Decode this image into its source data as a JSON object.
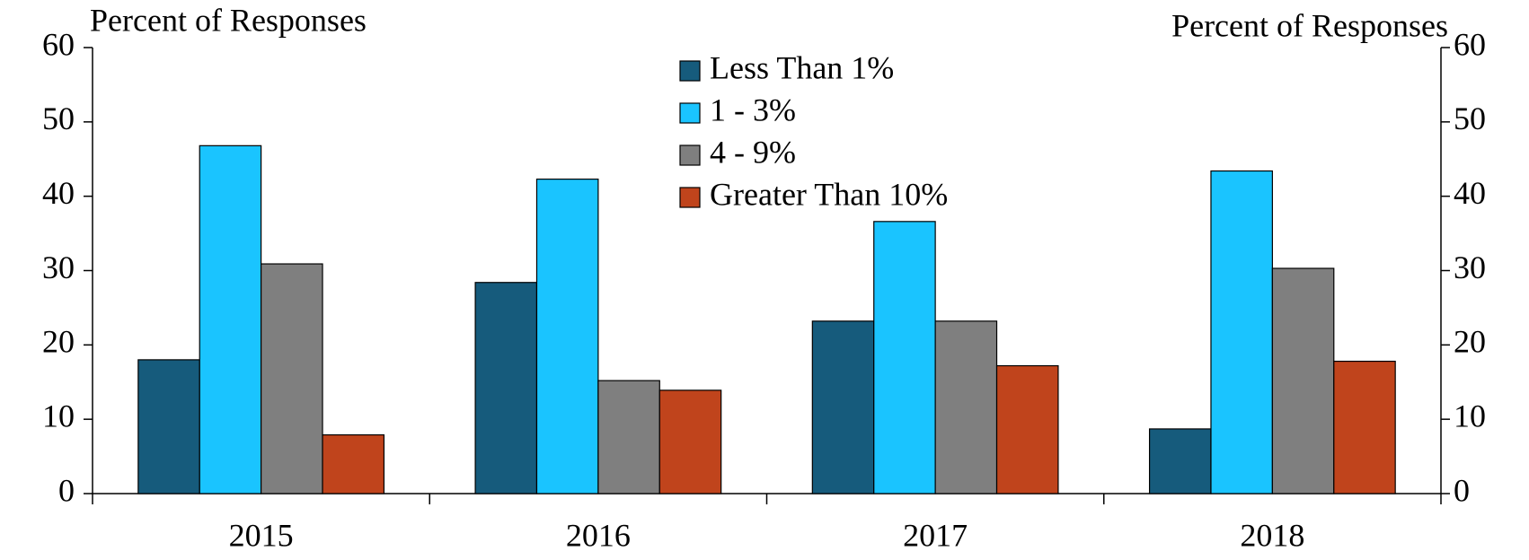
{
  "chart_data": {
    "type": "bar",
    "y_label_left": "Percent of Responses",
    "y_label_right": "Percent of Responses",
    "categories": [
      "2015",
      "2016",
      "2017",
      "2018"
    ],
    "series": [
      {
        "name": "Less Than 1%",
        "color": "#165b7c",
        "values": [
          18.0,
          28.4,
          23.2,
          8.7
        ]
      },
      {
        "name": "1 - 3%",
        "color": "#1ac4ff",
        "values": [
          46.8,
          42.3,
          36.6,
          43.4
        ]
      },
      {
        "name": "4 - 9%",
        "color": "#7f7f7f",
        "values": [
          30.9,
          15.2,
          23.2,
          30.3
        ]
      },
      {
        "name": "Greater Than 10%",
        "color": "#c0441c",
        "values": [
          7.9,
          13.9,
          17.2,
          17.8
        ]
      }
    ],
    "ylim": [
      0,
      60
    ],
    "yticks": [
      0,
      10,
      20,
      30,
      40,
      50,
      60
    ],
    "y2lim": [
      0,
      60
    ],
    "y2ticks": [
      0,
      10,
      20,
      30,
      40,
      50,
      60
    ],
    "legend": "top-center"
  }
}
